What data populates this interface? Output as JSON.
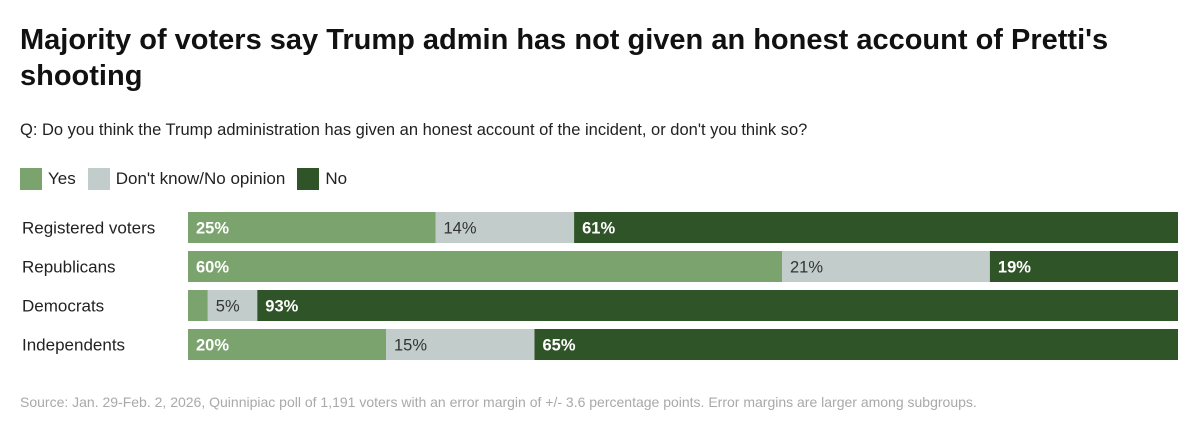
{
  "title": "Majority of voters say Trump admin has not given an honest account of Pretti's shooting",
  "subtitle": "Q: Do you think the Trump administration has given an honest account of the incident, or don't you think so?",
  "source": "Source: Jan. 29-Feb. 2, 2026, Quinnipiac poll of 1,191 voters with an error margin of +/- 3.6 percentage points. Error margins are larger among subgroups.",
  "chart_data": {
    "type": "bar",
    "orientation": "horizontal",
    "stacked": "100%",
    "legend_position": "top-left",
    "grid": false,
    "xlim": [
      0,
      100
    ],
    "categories": [
      "Registered voters",
      "Republicans",
      "Democrats",
      "Independents"
    ],
    "series": [
      {
        "name": "Yes",
        "color": "#7ba36e",
        "label_color": "#ffffff",
        "values": [
          25,
          60,
          2,
          20
        ],
        "labels": [
          "25%",
          "60%",
          null,
          "20%"
        ]
      },
      {
        "name": "Don't know/No opinion",
        "color": "#c1cccb",
        "label_color": "#333333",
        "values": [
          14,
          21,
          5,
          15
        ],
        "labels": [
          "14%",
          "21%",
          "5%",
          "15%"
        ]
      },
      {
        "name": "No",
        "color": "#2f5427",
        "label_color": "#ffffff",
        "values": [
          61,
          19,
          93,
          65
        ],
        "labels": [
          "61%",
          "19%",
          "93%",
          "65%"
        ]
      }
    ]
  }
}
